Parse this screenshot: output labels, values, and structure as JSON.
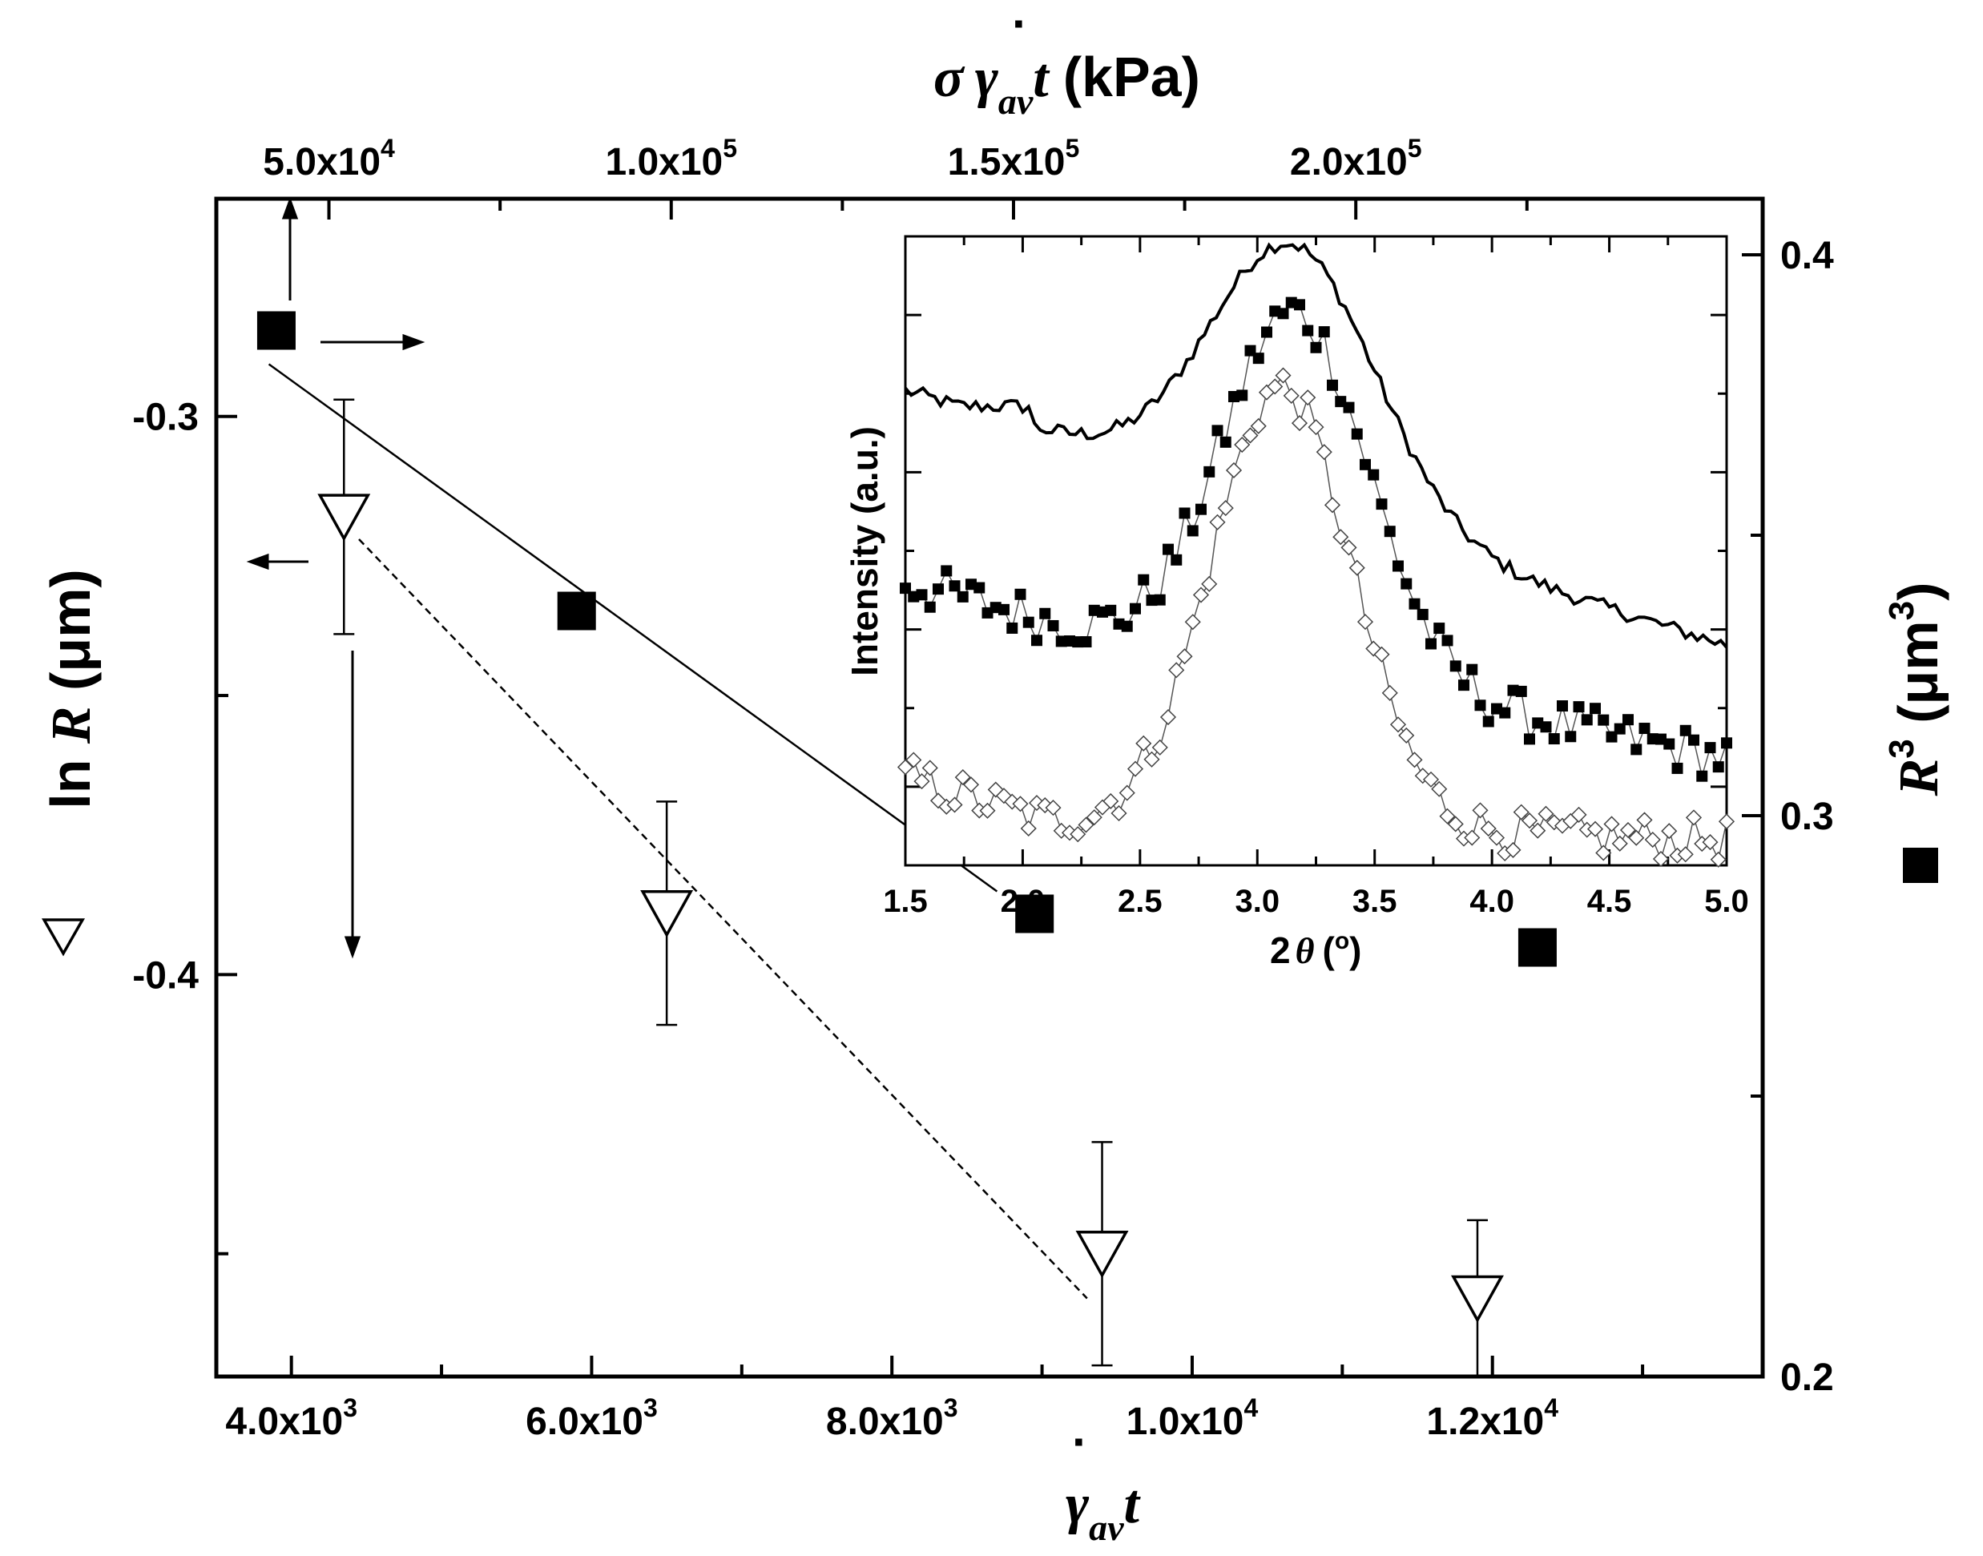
{
  "chart_data": {
    "type": "scatter",
    "main": {
      "x_axis_bottom": {
        "label": "γ̇avt",
        "range": [
          3500,
          13800
        ],
        "ticks": [
          4000,
          6000,
          8000,
          10000,
          12000
        ],
        "tick_labels": [
          [
            "4.0x10",
            "3"
          ],
          [
            "6.0x10",
            "3"
          ],
          [
            "8.0x10",
            "3"
          ],
          [
            "1.0x10",
            "4"
          ],
          [
            "1.2x10",
            "4"
          ]
        ]
      },
      "x_axis_top": {
        "label": "σγ̇avt (kPa)",
        "ticks": [
          50000,
          100000,
          150000,
          200000
        ],
        "tick_labels": [
          [
            "5.0x10",
            "4"
          ],
          [
            "1.0x10",
            "5"
          ],
          [
            "1.5x10",
            "5"
          ],
          [
            "2.0x10",
            "5"
          ]
        ]
      },
      "y_axis_left": {
        "label": "ln R (μm)",
        "range": [
          -0.472,
          -0.261
        ],
        "ticks": [
          -0.3,
          -0.4
        ],
        "tick_labels": [
          "-0.3",
          "-0.4"
        ]
      },
      "y_axis_right": {
        "label": "R3 (μm3)",
        "range": [
          0.2,
          0.41
        ],
        "ticks": [
          0.4,
          0.3,
          0.2
        ],
        "tick_labels": [
          "0.4",
          "0.3",
          "0.2"
        ]
      },
      "series": [
        {
          "name": "ln R",
          "marker": "open-triangle-down",
          "axis": "left",
          "x": [
            4350,
            6500,
            9400,
            11900
          ],
          "y": [
            -0.318,
            -0.389,
            -0.45,
            -0.458
          ],
          "yerr": [
            0.021,
            0.02,
            0.02,
            0.014
          ]
        },
        {
          "name": "R3",
          "marker": "filled-square",
          "axis": "right",
          "x": [
            3900,
            5900,
            8950,
            12300
          ],
          "y": [
            0.3865,
            0.3365,
            0.2825,
            0.2765
          ]
        }
      ],
      "fit_lines": [
        {
          "name": "R3 fit (solid)",
          "axis": "right",
          "x": [
            3850,
            8700
          ],
          "y": [
            0.3805,
            0.2865
          ]
        },
        {
          "name": "ln R fit (dashed)",
          "axis": "left",
          "x": [
            4450,
            9300
          ],
          "y": [
            -0.322,
            -0.458
          ]
        }
      ]
    },
    "inset": {
      "type": "line",
      "xlabel": "2θ (o)",
      "ylabel": "Intensity (a.u.)",
      "xlim": [
        1.5,
        5.0
      ],
      "ylim": [
        0,
        100
      ],
      "x_tick_labels": [
        "1.5",
        "2.0",
        "2.5",
        "3.0",
        "3.5",
        "4.0",
        "4.5",
        "5.0"
      ],
      "series_shape": [
        {
          "name": "solid line",
          "marker": "none",
          "peak_x": 3.12,
          "peak": 99,
          "base_left": 75.5,
          "base_right": 35,
          "width": 0.5,
          "pre_flat_until": 2.05,
          "pre_level": 73,
          "dip_x": 2.0,
          "dip_y": 70,
          "noise": 1.2
        },
        {
          "name": "filled squares",
          "marker": "filled-square",
          "peak_x": 3.15,
          "peak": 88,
          "base_left": 45,
          "base_right": 17,
          "width": 0.44,
          "pre_level": 58,
          "dip_x": 2.2,
          "dip_y": 38,
          "noise": 3.8
        },
        {
          "name": "open diamonds",
          "marker": "open-diamond",
          "peak_x": 3.1,
          "peak": 76,
          "base_left": 14,
          "base_right": 4,
          "width": 0.42,
          "pre_level": 20,
          "dip_x": 2.1,
          "dip_y": 7,
          "noise": 3.5
        }
      ]
    }
  }
}
